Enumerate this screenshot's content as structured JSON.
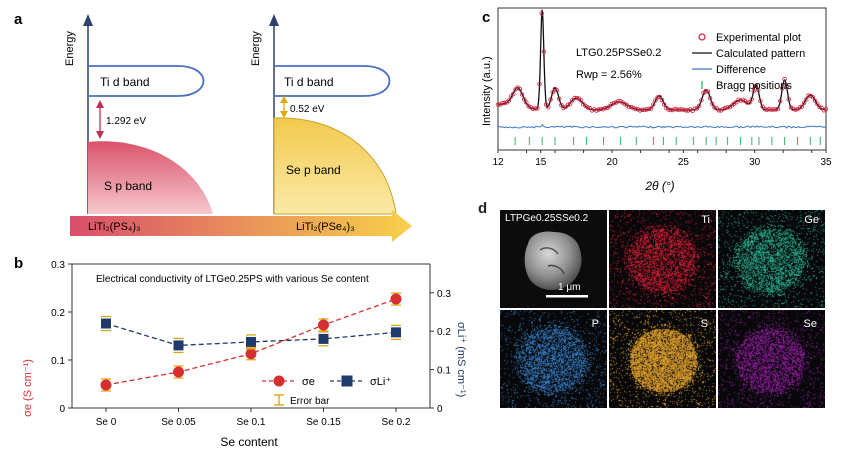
{
  "panels": {
    "a": {
      "letter": "a",
      "energy_label": "Energy",
      "left": {
        "ti_band": "Ti d band",
        "gap": "1.292 eV",
        "anion_band": "S p band",
        "compound": "LiTi₂(PS₄)₃"
      },
      "right": {
        "ti_band": "Ti d band",
        "gap": "0.52 eV",
        "anion_band": "Se p band",
        "compound": "LiTi₂(PSe₄)₃"
      }
    },
    "b": {
      "letter": "b",
      "title": "Electrical conductivity of LTGe0.25PS with various Se content",
      "ylabel_left": "σe (S cm⁻¹)",
      "ylabel_right": "σLi⁺ (mS cm⁻¹)",
      "xlabel": "Se content",
      "legend_e": "σe",
      "legend_li": "σLi⁺",
      "legend_error": "Error bar"
    },
    "c": {
      "letter": "c",
      "sample": "LTG0.25PSSe0.2",
      "rwp": "Rwp = 2.56%",
      "xlabel": "2θ (°)",
      "ylabel": "Intensity (a.u.)",
      "legend": [
        "Experimental plot",
        "Calculated pattern",
        "Difference",
        "Bragg positions"
      ]
    },
    "d": {
      "letter": "d",
      "sample": "LTPGe0.25SSe0.2",
      "scalebar": "1 μm",
      "maps": [
        {
          "element": "Ti",
          "color": "#e8203a"
        },
        {
          "element": "Ge",
          "color": "#2bbf9a"
        },
        {
          "element": "P",
          "color": "#3a8ad8"
        },
        {
          "element": "S",
          "color": "#f5b030"
        },
        {
          "element": "Se",
          "color": "#a020b0"
        }
      ]
    }
  },
  "chart_data": [
    {
      "type": "line",
      "panel": "b",
      "title": "Electrical conductivity of LTGe0.25PS with various Se content",
      "categories": [
        "Se 0",
        "Se 0.05",
        "Se 0.1",
        "Se 0.15",
        "Se 0.2"
      ],
      "xlabel": "Se content",
      "ylabel": "σe (S cm⁻¹)",
      "ylabel_right": "σLi⁺ (mS cm⁻¹)",
      "ylim": [
        0,
        0.3
      ],
      "ylim_right": [
        0,
        0.375
      ],
      "yticks": [
        0,
        0.1,
        0.2,
        0.3
      ],
      "yticks_right": [
        0,
        0.1,
        0.2,
        0.3
      ],
      "series": [
        {
          "name": "σe",
          "axis": "left",
          "color": "#d62f2f",
          "values": [
            0.048,
            0.075,
            0.113,
            0.173,
            0.227
          ]
        },
        {
          "name": "σLi⁺",
          "axis": "right",
          "color": "#1f3a6b",
          "values": [
            0.22,
            0.163,
            0.172,
            0.18,
            0.197
          ]
        }
      ]
    },
    {
      "type": "line",
      "panel": "c",
      "xlabel": "2θ (°)",
      "ylabel": "Intensity (a.u.)",
      "xlim": [
        12,
        35
      ],
      "xticks": [
        12,
        14,
        15,
        16,
        18,
        20,
        22,
        24,
        25,
        26,
        28,
        30,
        32,
        34,
        35
      ],
      "xtick_labels": [
        {
          "v": 12,
          "t": "12"
        },
        {
          "v": 15,
          "t": "15"
        },
        {
          "v": 20,
          "t": "20"
        },
        {
          "v": 25,
          "t": "25"
        },
        {
          "v": 30,
          "t": "30"
        },
        {
          "v": 35,
          "t": "35"
        }
      ],
      "peaks": [
        {
          "x": 13.4,
          "h": 0.18,
          "w": 0.5
        },
        {
          "x": 15.1,
          "h": 1.0,
          "w": 0.16
        },
        {
          "x": 16.0,
          "h": 0.22,
          "w": 0.35
        },
        {
          "x": 17.5,
          "h": 0.12,
          "w": 0.6
        },
        {
          "x": 20.5,
          "h": 0.08,
          "w": 0.8
        },
        {
          "x": 23.3,
          "h": 0.14,
          "w": 0.4
        },
        {
          "x": 26.6,
          "h": 0.2,
          "w": 0.4
        },
        {
          "x": 29.0,
          "h": 0.1,
          "w": 0.7
        },
        {
          "x": 30.1,
          "h": 0.24,
          "w": 0.3
        },
        {
          "x": 32.1,
          "h": 0.3,
          "w": 0.28
        },
        {
          "x": 33.9,
          "h": 0.15,
          "w": 0.5
        }
      ],
      "bragg_positions": [
        13.2,
        14.2,
        15.1,
        16.0,
        17.3,
        18.2,
        19.4,
        20.6,
        21.7,
        22.9,
        23.6,
        24.5,
        25.7,
        26.6,
        27.3,
        28.1,
        29.0,
        29.8,
        30.3,
        31.2,
        32.1,
        33.0,
        33.9,
        34.6
      ]
    }
  ]
}
